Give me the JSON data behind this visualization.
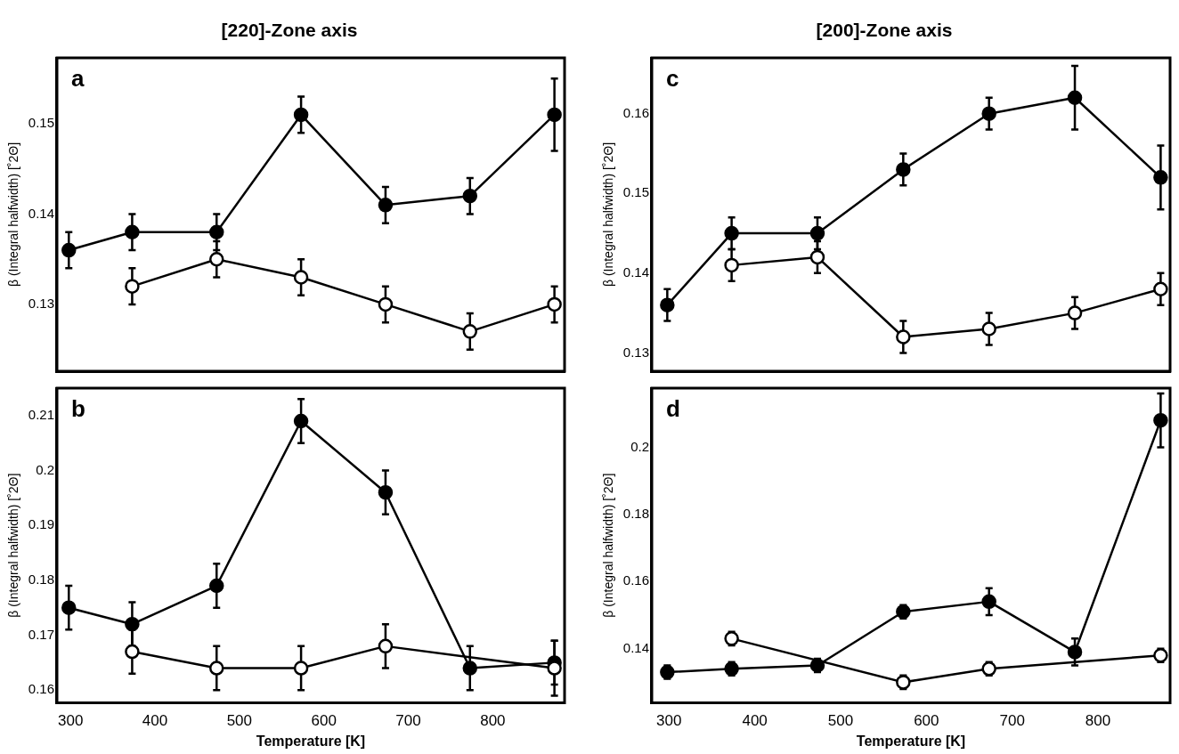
{
  "chart_data": [
    {
      "type": "line",
      "title": "[220]-Zone axis",
      "annotations": [
        "a"
      ],
      "ylabel": "β (Integral halfwidth) [˚2Θ]",
      "x": [
        298,
        373,
        473,
        573,
        673,
        773,
        873
      ],
      "xlim": [
        284,
        885
      ],
      "xticks": [
        300,
        400,
        500,
        600,
        700,
        800
      ],
      "ylim": [
        0.1226,
        0.1573
      ],
      "yticks": [
        0.13,
        0.14,
        0.15
      ],
      "tick_labels": "y",
      "marker": "circle",
      "series": [
        {
          "color": "#000000",
          "values": [
            0.136,
            0.138,
            0.138,
            0.151,
            0.141,
            0.142,
            0.151
          ],
          "errors": [
            0.002,
            0.002,
            0.002,
            0.002,
            0.002,
            0.002,
            0.004
          ]
        },
        {
          "color": "#000000",
          "values": [
            null,
            0.132,
            0.135,
            0.133,
            0.13,
            0.127,
            0.13
          ],
          "errors": [
            null,
            0.002,
            0.002,
            0.002,
            0.002,
            0.002,
            0.002
          ]
        }
      ]
    },
    {
      "type": "line",
      "annotations": [
        "b"
      ],
      "xlabel": "Temperature [K]",
      "ylabel": "β (Integral halfwidth) [˚2Θ]",
      "x": [
        298,
        373,
        473,
        573,
        673,
        773,
        873
      ],
      "xlim": [
        284,
        885
      ],
      "xticks": [
        300,
        400,
        500,
        600,
        700,
        800
      ],
      "ylim": [
        0.1577,
        0.215
      ],
      "yticks": [
        0.16,
        0.17,
        0.18,
        0.19,
        0.2,
        0.21
      ],
      "marker": "circle",
      "series": [
        {
          "color": "#000000",
          "values": [
            0.175,
            0.172,
            0.179,
            0.209,
            0.196,
            0.164,
            0.165
          ],
          "errors": [
            0.004,
            0.004,
            0.004,
            0.004,
            0.004,
            0.004,
            0.004
          ]
        },
        {
          "color": "#000000",
          "values": [
            null,
            0.167,
            0.164,
            0.164,
            0.168,
            null,
            0.164
          ],
          "errors": [
            null,
            0.004,
            0.004,
            0.004,
            0.004,
            null,
            0.005
          ]
        }
      ]
    },
    {
      "type": "line",
      "title": "[200]-Zone axis",
      "annotations": [
        "c"
      ],
      "ylabel": "β (Integral halfwidth) [˚2Θ]",
      "x": [
        298,
        373,
        473,
        573,
        673,
        773,
        873
      ],
      "xlim": [
        280,
        884
      ],
      "xticks": [
        300,
        400,
        500,
        600,
        700,
        800
      ],
      "ylim": [
        0.1277,
        0.167
      ],
      "yticks": [
        0.13,
        0.14,
        0.15,
        0.16
      ],
      "tick_labels": "y",
      "marker": "circle",
      "series": [
        {
          "color": "#000000",
          "values": [
            0.136,
            0.145,
            0.145,
            0.153,
            0.16,
            0.162,
            0.152
          ],
          "errors": [
            0.002,
            0.002,
            0.002,
            0.002,
            0.002,
            0.004,
            0.004
          ]
        },
        {
          "color": "#000000",
          "values": [
            null,
            0.141,
            0.142,
            0.132,
            0.133,
            0.135,
            0.138
          ],
          "errors": [
            null,
            0.002,
            0.002,
            0.002,
            0.002,
            0.002,
            0.002
          ]
        }
      ]
    },
    {
      "type": "line",
      "annotations": [
        "d"
      ],
      "xlabel": "Temperature [K]",
      "ylabel": "β (Integral halfwidth) [˚2Θ]",
      "x": [
        298,
        373,
        473,
        573,
        673,
        773,
        873
      ],
      "xlim": [
        280,
        884
      ],
      "xticks": [
        300,
        400,
        500,
        600,
        700,
        800
      ],
      "ylim": [
        0.1239,
        0.2176
      ],
      "yticks": [
        {
          "value": 0.14,
          "label": "0.14"
        },
        {
          "value": 0.16,
          "label": "0.16"
        },
        {
          "value": 0.18,
          "label": "0.18"
        },
        {
          "value": 0.2,
          "label": "0.2"
        }
      ],
      "marker": "circle",
      "series": [
        {
          "color": "#000000",
          "values": [
            0.133,
            0.134,
            0.135,
            0.151,
            0.154,
            0.139,
            0.208
          ],
          "errors": [
            0.002,
            0.002,
            0.002,
            0.002,
            0.004,
            0.004,
            0.008
          ]
        },
        {
          "color": "#000000",
          "values": [
            null,
            0.143,
            null,
            0.13,
            0.134,
            null,
            0.138
          ],
          "errors": [
            null,
            0.002,
            null,
            0.002,
            0.002,
            null,
            0.002
          ]
        }
      ]
    }
  ]
}
